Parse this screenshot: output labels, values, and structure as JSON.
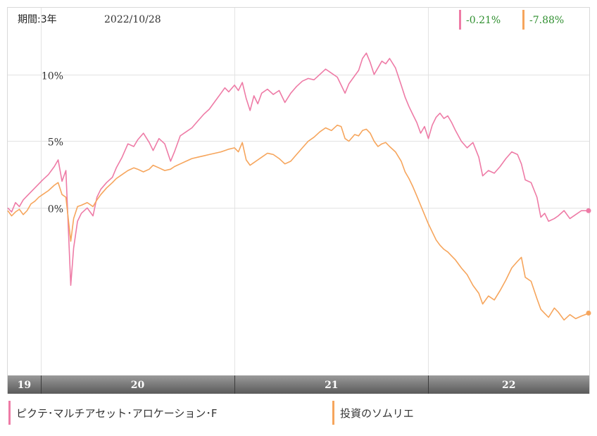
{
  "header": {
    "period_label": "期間:3年",
    "date": "2022/10/28",
    "returns": [
      {
        "value": "-0.21%",
        "color": "#ee7ba6"
      },
      {
        "value": "-7.88%",
        "color": "#f6a55c"
      }
    ]
  },
  "legend": {
    "items": [
      {
        "label": "ピクテ･マルチアセット･アロケーション･F",
        "color": "#ee7ba6"
      },
      {
        "label": "投資のソムリエ",
        "color": "#f6a55c"
      }
    ]
  },
  "chart_data": {
    "type": "line",
    "y_ticks": [
      {
        "value": 10,
        "label": "10%"
      },
      {
        "value": 5,
        "label": "5%"
      },
      {
        "value": 0,
        "label": "0%"
      }
    ],
    "ylim": [
      -12.5,
      15.0
    ],
    "x_range": [
      2019.83,
      2022.83
    ],
    "x_ticks": [
      {
        "label": "19",
        "start": 2019.83,
        "end": 2020.0
      },
      {
        "label": "20",
        "start": 2020.0,
        "end": 2021.0
      },
      {
        "label": "21",
        "start": 2021.0,
        "end": 2022.0
      },
      {
        "label": "22",
        "start": 2022.0,
        "end": 2022.83
      }
    ],
    "grid": true,
    "series": [
      {
        "name": "ピクテ･マルチアセット･アロケーション･F",
        "color": "#ee7ba6",
        "points": [
          [
            2019.83,
            0.0
          ],
          [
            2019.85,
            -0.3
          ],
          [
            2019.87,
            0.4
          ],
          [
            2019.89,
            0.1
          ],
          [
            2019.91,
            0.6
          ],
          [
            2019.93,
            0.9
          ],
          [
            2019.95,
            1.2
          ],
          [
            2019.97,
            1.5
          ],
          [
            2019.99,
            1.8
          ],
          [
            2020.01,
            2.1
          ],
          [
            2020.04,
            2.5
          ],
          [
            2020.07,
            3.1
          ],
          [
            2020.09,
            3.6
          ],
          [
            2020.11,
            2.0
          ],
          [
            2020.13,
            2.8
          ],
          [
            2020.155,
            -5.8
          ],
          [
            2020.17,
            -3.0
          ],
          [
            2020.19,
            -1.0
          ],
          [
            2020.21,
            -0.4
          ],
          [
            2020.24,
            0.0
          ],
          [
            2020.27,
            -0.6
          ],
          [
            2020.29,
            0.8
          ],
          [
            2020.31,
            1.4
          ],
          [
            2020.34,
            1.9
          ],
          [
            2020.37,
            2.3
          ],
          [
            2020.39,
            3.0
          ],
          [
            2020.42,
            3.8
          ],
          [
            2020.45,
            4.8
          ],
          [
            2020.48,
            4.6
          ],
          [
            2020.5,
            5.1
          ],
          [
            2020.53,
            5.6
          ],
          [
            2020.56,
            4.9
          ],
          [
            2020.58,
            4.3
          ],
          [
            2020.61,
            5.2
          ],
          [
            2020.64,
            4.8
          ],
          [
            2020.67,
            3.5
          ],
          [
            2020.69,
            4.2
          ],
          [
            2020.72,
            5.4
          ],
          [
            2020.75,
            5.7
          ],
          [
            2020.78,
            6.0
          ],
          [
            2020.81,
            6.5
          ],
          [
            2020.84,
            7.0
          ],
          [
            2020.87,
            7.4
          ],
          [
            2020.9,
            8.0
          ],
          [
            2020.93,
            8.6
          ],
          [
            2020.95,
            9.0
          ],
          [
            2020.97,
            8.7
          ],
          [
            2021.0,
            9.2
          ],
          [
            2021.02,
            8.8
          ],
          [
            2021.04,
            9.4
          ],
          [
            2021.06,
            8.2
          ],
          [
            2021.08,
            7.3
          ],
          [
            2021.1,
            8.4
          ],
          [
            2021.12,
            7.8
          ],
          [
            2021.14,
            8.6
          ],
          [
            2021.17,
            8.9
          ],
          [
            2021.2,
            8.5
          ],
          [
            2021.23,
            8.8
          ],
          [
            2021.26,
            7.9
          ],
          [
            2021.29,
            8.6
          ],
          [
            2021.32,
            9.1
          ],
          [
            2021.35,
            9.5
          ],
          [
            2021.38,
            9.7
          ],
          [
            2021.41,
            9.6
          ],
          [
            2021.44,
            10.0
          ],
          [
            2021.47,
            10.4
          ],
          [
            2021.5,
            10.1
          ],
          [
            2021.53,
            9.8
          ],
          [
            2021.55,
            9.2
          ],
          [
            2021.57,
            8.6
          ],
          [
            2021.59,
            9.3
          ],
          [
            2021.62,
            9.9
          ],
          [
            2021.64,
            10.3
          ],
          [
            2021.66,
            11.2
          ],
          [
            2021.68,
            11.6
          ],
          [
            2021.7,
            10.9
          ],
          [
            2021.72,
            10.0
          ],
          [
            2021.74,
            10.5
          ],
          [
            2021.76,
            11.0
          ],
          [
            2021.78,
            10.8
          ],
          [
            2021.8,
            11.2
          ],
          [
            2021.83,
            10.5
          ],
          [
            2021.86,
            9.2
          ],
          [
            2021.88,
            8.3
          ],
          [
            2021.9,
            7.6
          ],
          [
            2021.92,
            7.0
          ],
          [
            2021.94,
            6.4
          ],
          [
            2021.96,
            5.6
          ],
          [
            2021.98,
            6.1
          ],
          [
            2022.0,
            5.2
          ],
          [
            2022.02,
            6.2
          ],
          [
            2022.04,
            6.8
          ],
          [
            2022.06,
            7.1
          ],
          [
            2022.08,
            6.7
          ],
          [
            2022.1,
            6.9
          ],
          [
            2022.12,
            6.4
          ],
          [
            2022.14,
            5.8
          ],
          [
            2022.17,
            5.0
          ],
          [
            2022.2,
            4.5
          ],
          [
            2022.23,
            4.9
          ],
          [
            2022.26,
            3.8
          ],
          [
            2022.28,
            2.4
          ],
          [
            2022.31,
            2.8
          ],
          [
            2022.34,
            2.6
          ],
          [
            2022.37,
            3.1
          ],
          [
            2022.4,
            3.7
          ],
          [
            2022.43,
            4.2
          ],
          [
            2022.46,
            4.0
          ],
          [
            2022.48,
            3.3
          ],
          [
            2022.5,
            2.1
          ],
          [
            2022.53,
            1.9
          ],
          [
            2022.56,
            0.8
          ],
          [
            2022.58,
            -0.7
          ],
          [
            2022.6,
            -0.4
          ],
          [
            2022.62,
            -1.0
          ],
          [
            2022.65,
            -0.8
          ],
          [
            2022.67,
            -0.6
          ],
          [
            2022.7,
            -0.2
          ],
          [
            2022.73,
            -0.8
          ],
          [
            2022.76,
            -0.5
          ],
          [
            2022.79,
            -0.2
          ],
          [
            2022.83,
            -0.21
          ]
        ]
      },
      {
        "name": "投資のソムリエ",
        "color": "#f6a55c",
        "points": [
          [
            2019.83,
            -0.2
          ],
          [
            2019.85,
            -0.6
          ],
          [
            2019.87,
            -0.3
          ],
          [
            2019.89,
            -0.1
          ],
          [
            2019.91,
            -0.5
          ],
          [
            2019.93,
            -0.2
          ],
          [
            2019.95,
            0.3
          ],
          [
            2019.97,
            0.5
          ],
          [
            2019.99,
            0.8
          ],
          [
            2020.01,
            1.0
          ],
          [
            2020.04,
            1.3
          ],
          [
            2020.07,
            1.7
          ],
          [
            2020.09,
            1.9
          ],
          [
            2020.11,
            1.0
          ],
          [
            2020.13,
            0.8
          ],
          [
            2020.155,
            -2.5
          ],
          [
            2020.17,
            -0.8
          ],
          [
            2020.19,
            0.1
          ],
          [
            2020.21,
            0.2
          ],
          [
            2020.24,
            0.4
          ],
          [
            2020.27,
            0.1
          ],
          [
            2020.29,
            0.6
          ],
          [
            2020.31,
            1.0
          ],
          [
            2020.34,
            1.5
          ],
          [
            2020.37,
            1.9
          ],
          [
            2020.39,
            2.2
          ],
          [
            2020.42,
            2.5
          ],
          [
            2020.45,
            2.8
          ],
          [
            2020.48,
            3.0
          ],
          [
            2020.5,
            2.9
          ],
          [
            2020.53,
            2.7
          ],
          [
            2020.56,
            2.9
          ],
          [
            2020.58,
            3.2
          ],
          [
            2020.61,
            3.0
          ],
          [
            2020.64,
            2.8
          ],
          [
            2020.67,
            2.9
          ],
          [
            2020.69,
            3.1
          ],
          [
            2020.72,
            3.3
          ],
          [
            2020.75,
            3.5
          ],
          [
            2020.78,
            3.7
          ],
          [
            2020.81,
            3.8
          ],
          [
            2020.84,
            3.9
          ],
          [
            2020.87,
            4.0
          ],
          [
            2020.9,
            4.1
          ],
          [
            2020.93,
            4.2
          ],
          [
            2020.95,
            4.3
          ],
          [
            2020.97,
            4.4
          ],
          [
            2021.0,
            4.5
          ],
          [
            2021.02,
            4.2
          ],
          [
            2021.04,
            4.9
          ],
          [
            2021.06,
            3.6
          ],
          [
            2021.08,
            3.2
          ],
          [
            2021.1,
            3.4
          ],
          [
            2021.12,
            3.6
          ],
          [
            2021.14,
            3.8
          ],
          [
            2021.17,
            4.1
          ],
          [
            2021.2,
            4.0
          ],
          [
            2021.23,
            3.7
          ],
          [
            2021.26,
            3.3
          ],
          [
            2021.29,
            3.5
          ],
          [
            2021.32,
            4.0
          ],
          [
            2021.35,
            4.5
          ],
          [
            2021.38,
            5.0
          ],
          [
            2021.41,
            5.3
          ],
          [
            2021.44,
            5.7
          ],
          [
            2021.47,
            6.0
          ],
          [
            2021.5,
            5.8
          ],
          [
            2021.53,
            6.2
          ],
          [
            2021.55,
            6.1
          ],
          [
            2021.57,
            5.2
          ],
          [
            2021.59,
            5.0
          ],
          [
            2021.62,
            5.5
          ],
          [
            2021.64,
            5.4
          ],
          [
            2021.66,
            5.8
          ],
          [
            2021.68,
            5.9
          ],
          [
            2021.7,
            5.6
          ],
          [
            2021.72,
            5.0
          ],
          [
            2021.74,
            4.6
          ],
          [
            2021.76,
            4.8
          ],
          [
            2021.78,
            4.9
          ],
          [
            2021.8,
            4.6
          ],
          [
            2021.83,
            4.2
          ],
          [
            2021.86,
            3.5
          ],
          [
            2021.88,
            2.7
          ],
          [
            2021.9,
            2.2
          ],
          [
            2021.92,
            1.6
          ],
          [
            2021.94,
            0.9
          ],
          [
            2021.96,
            0.2
          ],
          [
            2021.98,
            -0.5
          ],
          [
            2022.0,
            -1.2
          ],
          [
            2022.02,
            -1.8
          ],
          [
            2022.04,
            -2.4
          ],
          [
            2022.06,
            -2.8
          ],
          [
            2022.08,
            -3.1
          ],
          [
            2022.1,
            -3.3
          ],
          [
            2022.12,
            -3.6
          ],
          [
            2022.14,
            -3.9
          ],
          [
            2022.17,
            -4.5
          ],
          [
            2022.2,
            -5.0
          ],
          [
            2022.23,
            -5.8
          ],
          [
            2022.26,
            -6.4
          ],
          [
            2022.28,
            -7.2
          ],
          [
            2022.31,
            -6.6
          ],
          [
            2022.34,
            -6.9
          ],
          [
            2022.37,
            -6.2
          ],
          [
            2022.4,
            -5.4
          ],
          [
            2022.43,
            -4.5
          ],
          [
            2022.46,
            -4.0
          ],
          [
            2022.48,
            -3.7
          ],
          [
            2022.5,
            -5.2
          ],
          [
            2022.53,
            -5.5
          ],
          [
            2022.56,
            -6.8
          ],
          [
            2022.58,
            -7.6
          ],
          [
            2022.6,
            -7.9
          ],
          [
            2022.62,
            -8.2
          ],
          [
            2022.65,
            -7.5
          ],
          [
            2022.67,
            -7.8
          ],
          [
            2022.7,
            -8.4
          ],
          [
            2022.73,
            -8.0
          ],
          [
            2022.76,
            -8.3
          ],
          [
            2022.79,
            -8.1
          ],
          [
            2022.83,
            -7.88
          ]
        ]
      }
    ]
  }
}
